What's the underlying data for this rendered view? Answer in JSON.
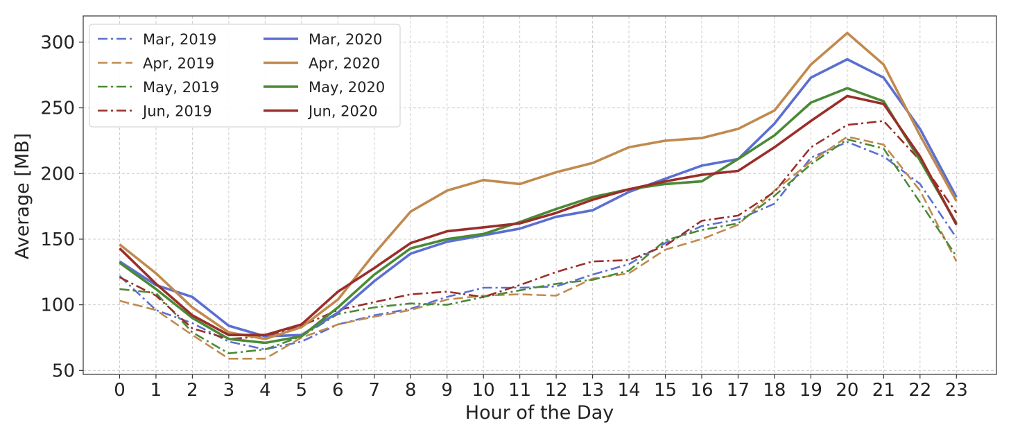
{
  "chart_data": {
    "type": "line",
    "xlabel": "Hour of the Day",
    "ylabel": "Average [MB]",
    "x": [
      0,
      1,
      2,
      3,
      4,
      5,
      6,
      7,
      8,
      9,
      10,
      11,
      12,
      13,
      14,
      15,
      16,
      17,
      18,
      19,
      20,
      21,
      22,
      23
    ],
    "xticks": [
      "0",
      "1",
      "2",
      "3",
      "4",
      "5",
      "6",
      "7",
      "8",
      "9",
      "10",
      "11",
      "12",
      "13",
      "14",
      "15",
      "16",
      "17",
      "18",
      "19",
      "20",
      "21",
      "22",
      "23"
    ],
    "xlim": [
      -1,
      24.1
    ],
    "ylim": [
      47,
      320
    ],
    "yticks": [
      50,
      100,
      150,
      200,
      250,
      300
    ],
    "ytick_labels": [
      "50",
      "100",
      "150",
      "200",
      "250",
      "300"
    ],
    "grid": true,
    "legend": {
      "placement": "top-left",
      "columns": 2
    },
    "series": [
      {
        "name": "Mar, 2019",
        "style": "dashdot",
        "color": "#5b6fd1",
        "values": [
          122,
          96,
          86,
          72,
          66,
          72,
          85,
          92,
          97,
          106,
          113,
          113,
          114,
          123,
          131,
          147,
          160,
          165,
          177,
          212,
          224,
          213,
          192,
          151
        ]
      },
      {
        "name": "Apr, 2019",
        "style": "dashed",
        "color": "#c08a4e",
        "values": [
          103,
          96,
          77,
          59,
          59,
          75,
          85,
          91,
          96,
          104,
          107,
          108,
          107,
          120,
          124,
          142,
          150,
          161,
          187,
          209,
          228,
          222,
          187,
          133
        ]
      },
      {
        "name": "May, 2019",
        "style": "dashdot",
        "color": "#4a8a35",
        "values": [
          112,
          109,
          79,
          63,
          66,
          76,
          93,
          98,
          101,
          100,
          106,
          111,
          116,
          119,
          126,
          149,
          157,
          162,
          183,
          207,
          226,
          219,
          178,
          137
        ]
      },
      {
        "name": "Jun, 2019",
        "style": "dashdot",
        "color": "#9a2e2a",
        "values": [
          121,
          107,
          82,
          74,
          76,
          84,
          96,
          102,
          108,
          110,
          106,
          115,
          125,
          133,
          134,
          145,
          164,
          168,
          186,
          220,
          237,
          240,
          210,
          170
        ]
      },
      {
        "name": "Mar, 2020",
        "style": "solid",
        "color": "#5b6fd1",
        "values": [
          133,
          115,
          106,
          84,
          76,
          77,
          94,
          118,
          139,
          148,
          153,
          158,
          167,
          172,
          186,
          196,
          206,
          211,
          238,
          273,
          287,
          273,
          234,
          182
        ]
      },
      {
        "name": "Apr, 2020",
        "style": "solid",
        "color": "#c08a4e",
        "values": [
          146,
          124,
          98,
          79,
          74,
          83,
          104,
          139,
          171,
          187,
          195,
          192,
          201,
          208,
          220,
          225,
          227,
          234,
          248,
          283,
          307,
          283,
          229,
          179
        ]
      },
      {
        "name": "May, 2020",
        "style": "solid",
        "color": "#4a8a35",
        "values": [
          132,
          112,
          90,
          74,
          71,
          76,
          98,
          123,
          143,
          150,
          154,
          163,
          173,
          182,
          188,
          192,
          194,
          211,
          229,
          254,
          265,
          255,
          210,
          162
        ]
      },
      {
        "name": "Jun, 2020",
        "style": "solid",
        "color": "#9a2e2a",
        "values": [
          143,
          116,
          92,
          77,
          77,
          85,
          110,
          128,
          147,
          156,
          159,
          162,
          170,
          180,
          188,
          194,
          199,
          202,
          220,
          240,
          259,
          253,
          213,
          161
        ]
      }
    ]
  }
}
